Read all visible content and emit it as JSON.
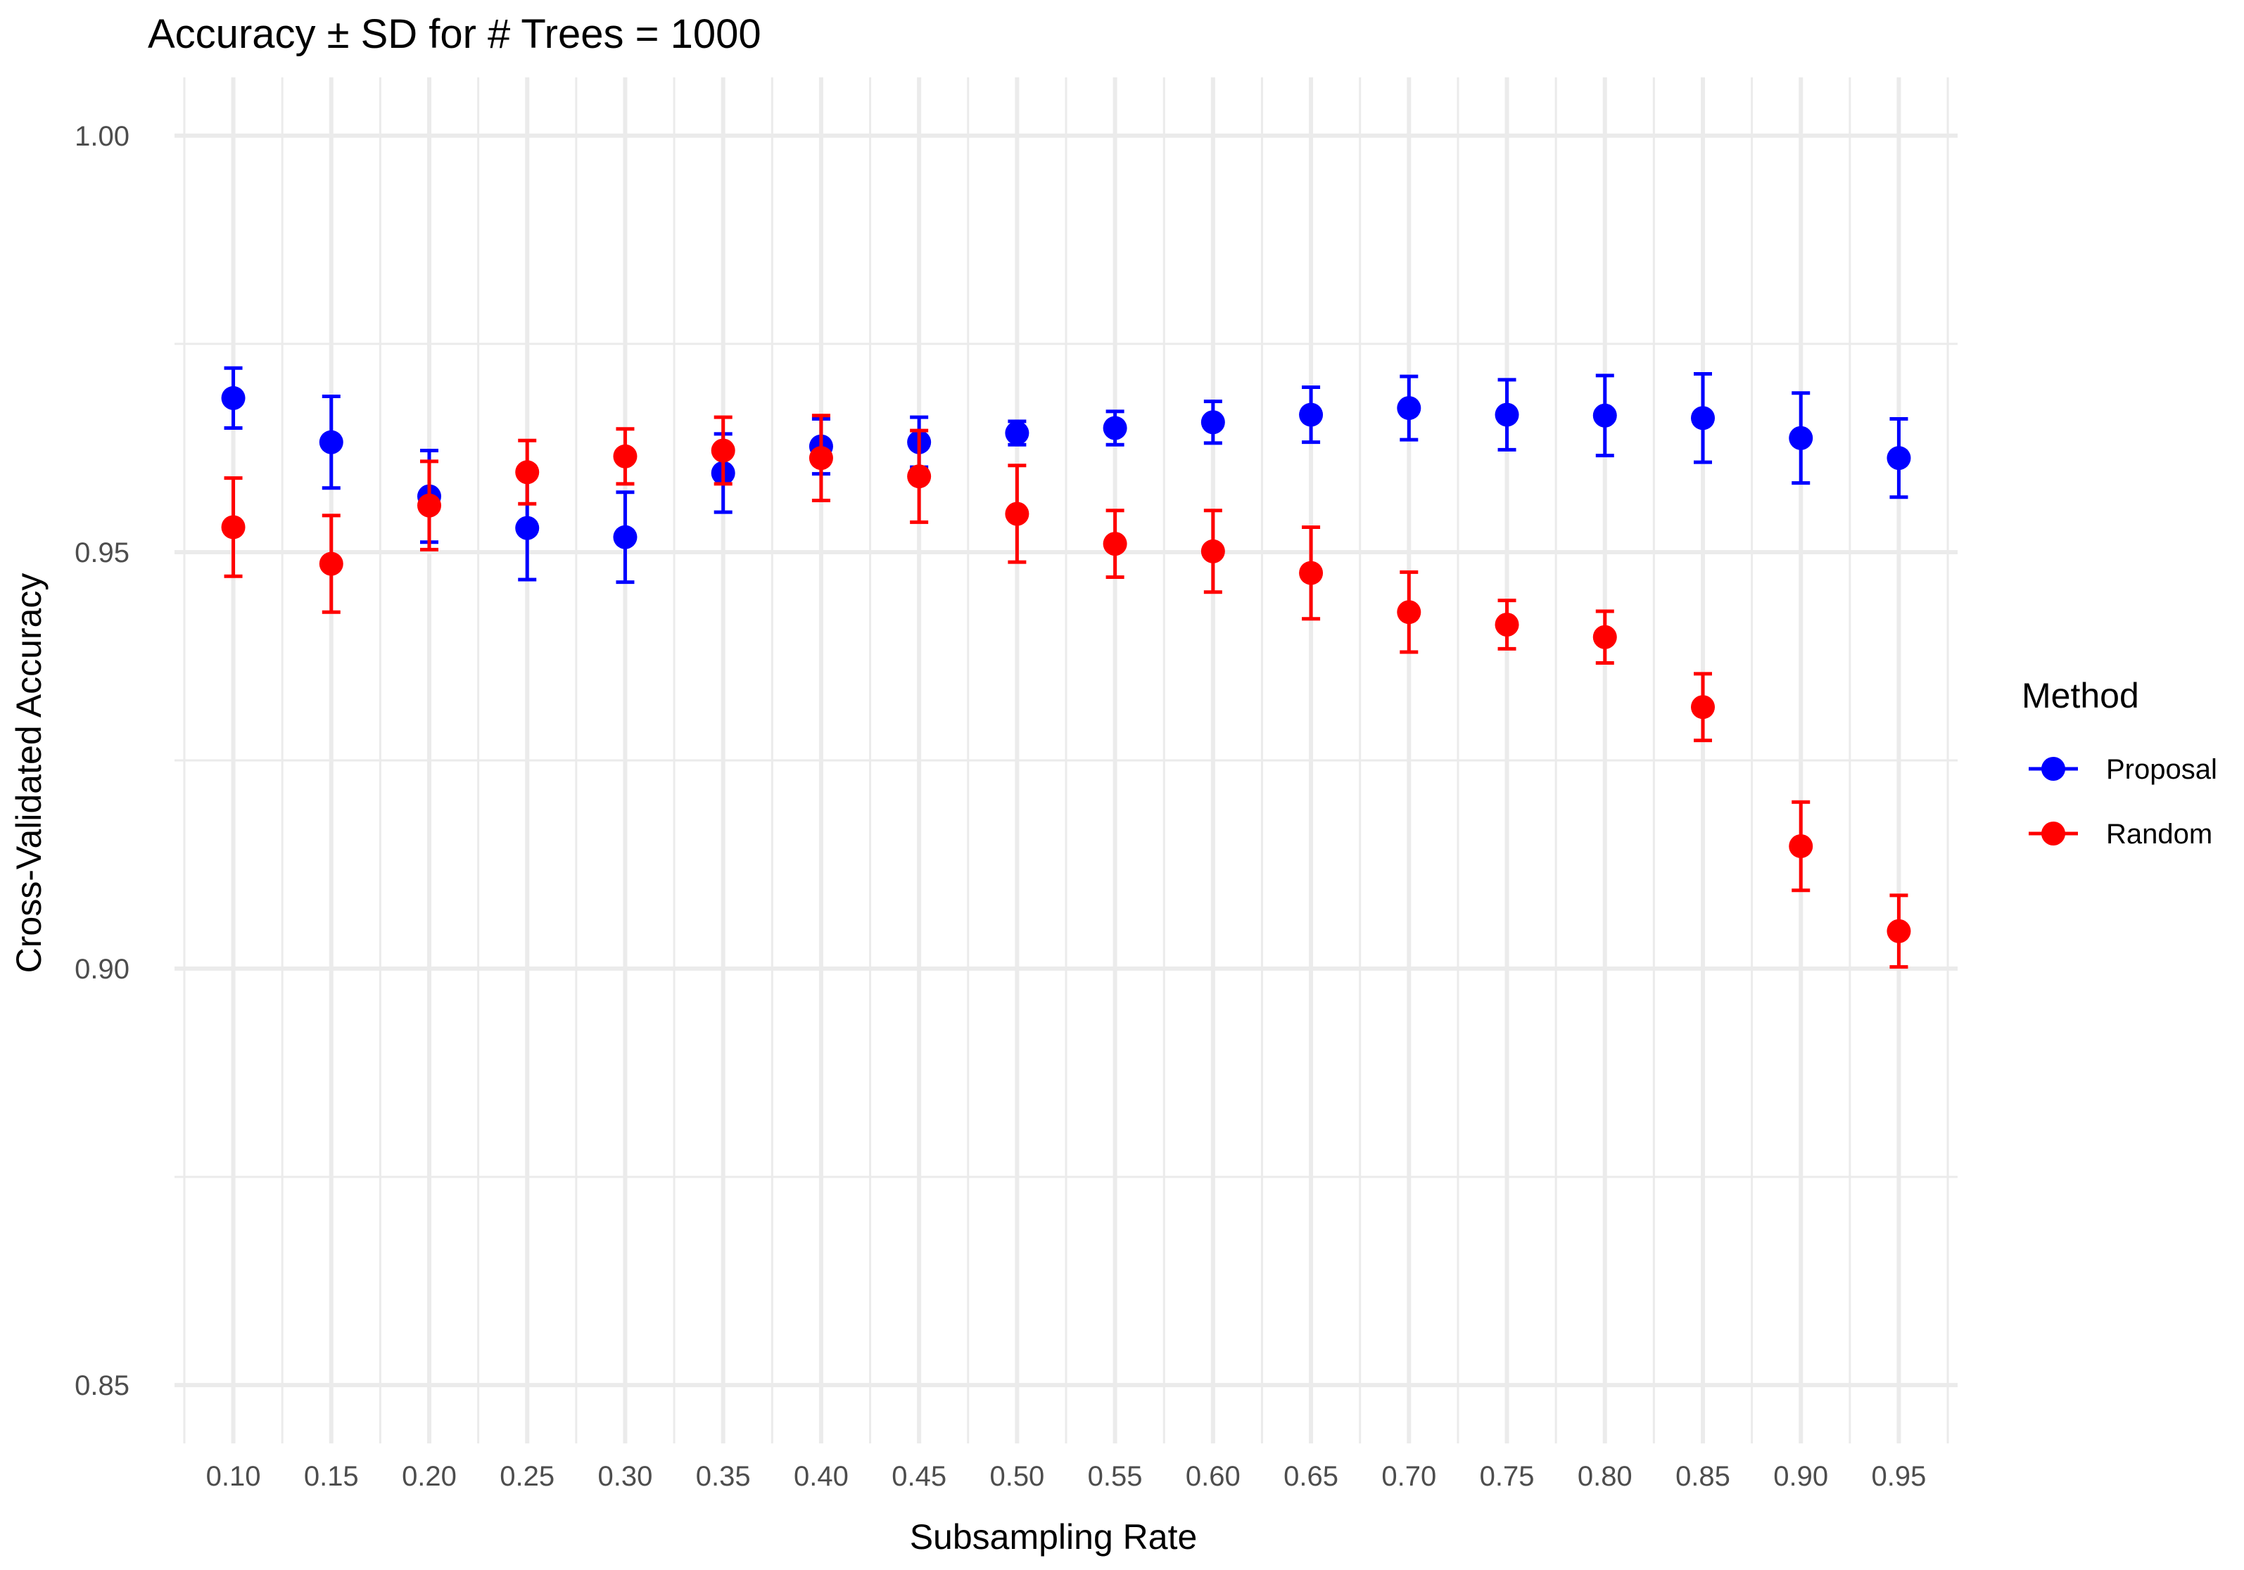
{
  "chart_data": {
    "type": "scatter",
    "title": "Accuracy ± SD for # Trees = 1000",
    "xlabel": "Subsampling Rate",
    "ylabel": "Cross-Validated Accuracy",
    "categories": [
      "0.10",
      "0.15",
      "0.20",
      "0.25",
      "0.30",
      "0.35",
      "0.40",
      "0.45",
      "0.50",
      "0.55",
      "0.60",
      "0.65",
      "0.70",
      "0.75",
      "0.80",
      "0.85",
      "0.90",
      "0.95"
    ],
    "ylim": [
      0.843,
      1.007
    ],
    "yticks": [
      0.85,
      0.9,
      0.95,
      1.0
    ],
    "ytick_labels": [
      "0.85",
      "0.90",
      "0.95",
      "1.00"
    ],
    "grid": true,
    "legend": {
      "title": "Method",
      "position": "right"
    },
    "series": [
      {
        "name": "Proposal",
        "color": "#0000FF",
        "values": [
          0.9685,
          0.9632,
          0.9567,
          0.9529,
          0.9518,
          0.9595,
          0.9627,
          0.9632,
          0.9643,
          0.9649,
          0.9656,
          0.9665,
          0.9673,
          0.9665,
          0.9664,
          0.9661,
          0.9637,
          0.9613
        ],
        "sd": [
          0.0036,
          0.0055,
          0.0055,
          0.0062,
          0.0054,
          0.0047,
          0.0033,
          0.003,
          0.0014,
          0.002,
          0.0025,
          0.0033,
          0.0038,
          0.0042,
          0.0048,
          0.0053,
          0.0054,
          0.0047
        ]
      },
      {
        "name": "Random",
        "color": "#FF0000",
        "values": [
          0.953,
          0.9486,
          0.9556,
          0.9596,
          0.9615,
          0.9622,
          0.9613,
          0.9591,
          0.9546,
          0.951,
          0.9501,
          0.9475,
          0.9428,
          0.9413,
          0.9398,
          0.9314,
          0.9147,
          0.9045
        ],
        "sd": [
          0.0059,
          0.0058,
          0.0053,
          0.0038,
          0.0033,
          0.004,
          0.0051,
          0.0055,
          0.0058,
          0.004,
          0.0049,
          0.0055,
          0.0048,
          0.0029,
          0.0031,
          0.004,
          0.0053,
          0.0043
        ]
      }
    ]
  }
}
